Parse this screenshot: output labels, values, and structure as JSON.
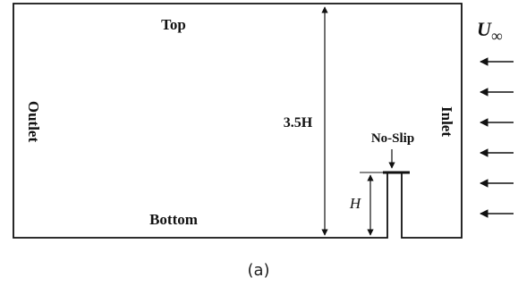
{
  "labels": {
    "top": "Top",
    "bottom": "Bottom",
    "outlet": "Outlet",
    "inlet": "Inlet",
    "domain_height": "3.5H",
    "no_slip": "No-Slip",
    "plate_height": "H",
    "velocity_symbol": "U",
    "velocity_subscript": "∞",
    "caption": "(a)"
  },
  "inlet_arrow_count": 6,
  "colors": {
    "line": "#111111",
    "background": "#ffffff"
  }
}
